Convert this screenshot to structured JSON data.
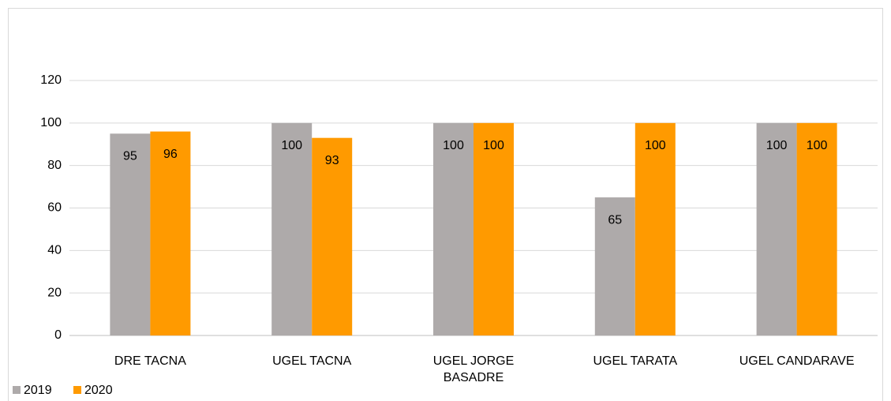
{
  "chart_data": {
    "type": "bar",
    "categories": [
      "DRE TACNA",
      "UGEL TACNA",
      "UGEL JORGE BASADRE",
      "UGEL TARATA",
      "UGEL CANDARAVE"
    ],
    "series": [
      {
        "name": "2019",
        "color": "#aeaaaa",
        "values": [
          95,
          100,
          100,
          65,
          100
        ]
      },
      {
        "name": "2020",
        "color": "#ff9a00",
        "values": [
          96,
          93,
          100,
          100,
          100
        ]
      }
    ],
    "ylim": [
      0,
      120
    ],
    "yticks": [
      0,
      20,
      40,
      60,
      80,
      100,
      120
    ],
    "grid": true,
    "legend": "bottom-left"
  }
}
